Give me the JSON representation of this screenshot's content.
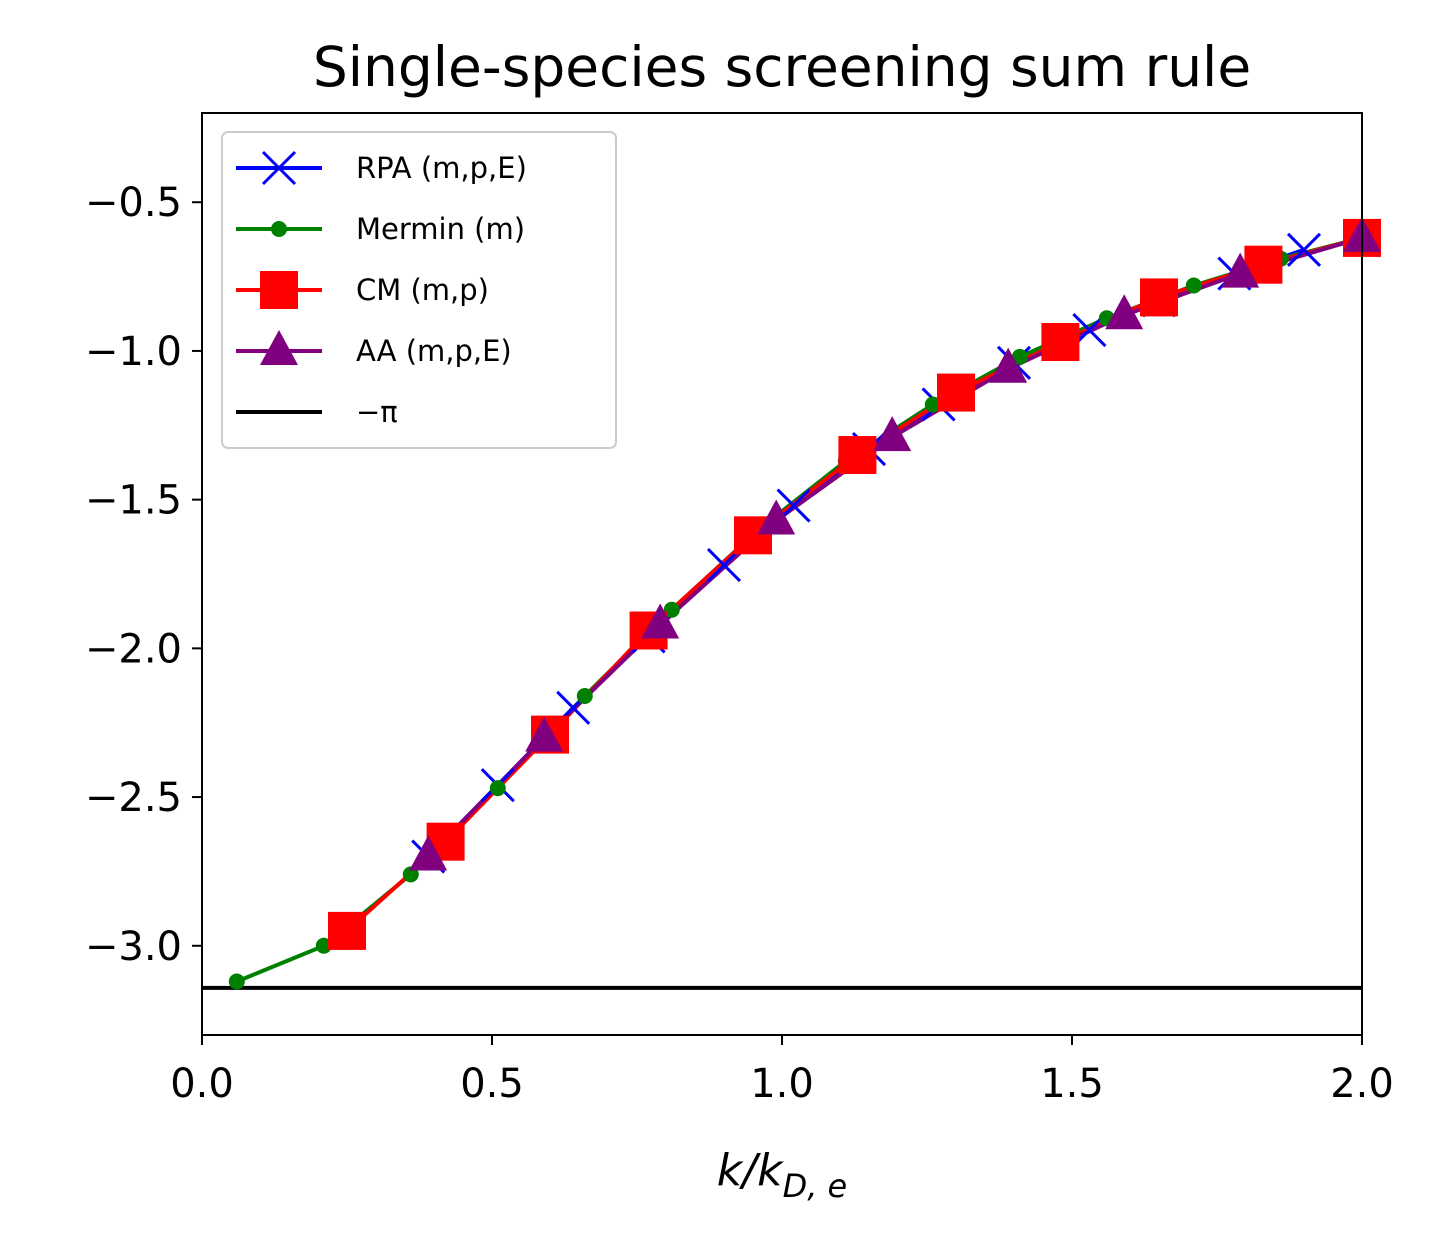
{
  "chart_data": {
    "type": "line",
    "title": "Single-species screening sum rule",
    "xlabel": "k/k_{D,e}",
    "xlabel_main": "k/k",
    "xlabel_sub": "D, e",
    "ylabel": "",
    "xlim": [
      0.0,
      2.0
    ],
    "ylim": [
      -3.3,
      -0.2
    ],
    "xticks": [
      0.0,
      0.5,
      1.0,
      1.5,
      2.0
    ],
    "xtick_labels": [
      "0.0",
      "0.5",
      "1.0",
      "1.5",
      "2.0"
    ],
    "yticks": [
      -3.0,
      -2.5,
      -2.0,
      -1.5,
      -1.0,
      -0.5
    ],
    "ytick_labels": [
      "−3.0",
      "−2.5",
      "−2.0",
      "−1.5",
      "−1.0",
      "−0.5"
    ],
    "grid": false,
    "legend_position": "top-left",
    "series": [
      {
        "name": "RPA (m,p,E)",
        "color": "#0000ff",
        "marker": "x",
        "x": [
          0.39,
          0.51,
          0.64,
          0.77,
          0.9,
          1.02,
          1.15,
          1.27,
          1.4,
          1.53,
          1.65,
          1.78,
          1.9
        ],
        "y": [
          -2.7,
          -2.46,
          -2.2,
          -1.96,
          -1.72,
          -1.52,
          -1.33,
          -1.18,
          -1.04,
          -0.93,
          -0.83,
          -0.74,
          -0.66
        ]
      },
      {
        "name": "Mermin (m)",
        "color": "#008000",
        "marker": "o",
        "x": [
          0.06,
          0.21,
          0.36,
          0.51,
          0.66,
          0.81,
          0.96,
          1.11,
          1.26,
          1.41,
          1.56,
          1.71,
          1.86,
          2.0
        ],
        "y": [
          -3.12,
          -3.0,
          -2.76,
          -2.47,
          -2.16,
          -1.87,
          -1.6,
          -1.37,
          -1.18,
          -1.02,
          -0.89,
          -0.78,
          -0.69,
          -0.62
        ]
      },
      {
        "name": "CM (m,p)",
        "color": "#ff0000",
        "marker": "s",
        "x": [
          0.25,
          0.42,
          0.6,
          0.77,
          0.95,
          1.13,
          1.3,
          1.48,
          1.65,
          1.83,
          2.0
        ],
        "y": [
          -2.95,
          -2.65,
          -2.29,
          -1.94,
          -1.62,
          -1.35,
          -1.14,
          -0.97,
          -0.82,
          -0.71,
          -0.62
        ]
      },
      {
        "name": "AA (m,p,E)",
        "color": "#800080",
        "marker": "^",
        "x": [
          0.39,
          0.59,
          0.79,
          0.99,
          1.19,
          1.39,
          1.59,
          1.79,
          2.0
        ],
        "y": [
          -2.7,
          -2.3,
          -1.92,
          -1.57,
          -1.29,
          -1.06,
          -0.88,
          -0.74,
          -0.62
        ]
      }
    ],
    "reference_line": {
      "name": "−π",
      "y": -3.14159,
      "color": "#000000"
    }
  }
}
